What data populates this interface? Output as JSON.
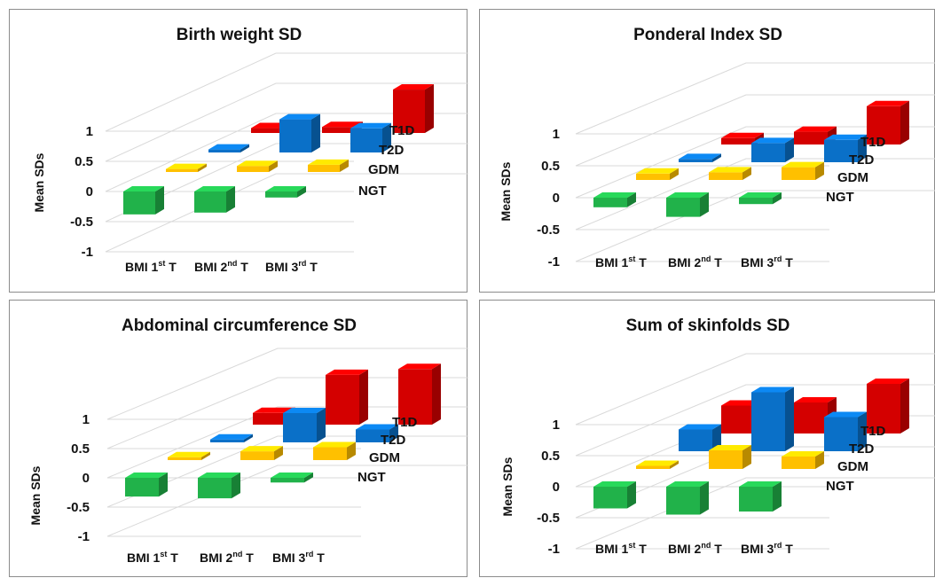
{
  "colors": {
    "NGT": "#21b24a",
    "GDM": "#ffc000",
    "T2D": "#0a70c8",
    "T1D": "#d40000"
  },
  "chart_data": [
    {
      "type": "bar",
      "title": "Birth weight SD",
      "ylabel": "Mean SDs",
      "ylim": [
        -1,
        1
      ],
      "yticks": [
        "1",
        "0.5",
        "0",
        "-0.5",
        "-1"
      ],
      "categories": [
        [
          "BMI 1",
          "st",
          " T"
        ],
        [
          "BMI 2",
          "nd",
          " T"
        ],
        [
          "BMI 3",
          "rd",
          " T"
        ]
      ],
      "series": [
        {
          "name": "NGT",
          "values": [
            -0.38,
            -0.35,
            -0.1
          ]
        },
        {
          "name": "GDM",
          "values": [
            0.05,
            0.1,
            0.12
          ]
        },
        {
          "name": "T2D",
          "values": [
            0.05,
            0.55,
            0.4
          ]
        },
        {
          "name": "T1D",
          "values": [
            0.08,
            0.1,
            0.72
          ]
        }
      ]
    },
    {
      "type": "bar",
      "title": "Ponderal Index SD",
      "ylabel": "Mean SDs",
      "ylim": [
        -1,
        1
      ],
      "yticks": [
        "1",
        "0.5",
        "0",
        "-0.5",
        "-1"
      ],
      "categories": [
        [
          "BMI 1",
          "st",
          " T"
        ],
        [
          "BMI 2",
          "nd",
          " T"
        ],
        [
          "BMI 3",
          "rd",
          " T"
        ]
      ],
      "series": [
        {
          "name": "NGT",
          "values": [
            -0.15,
            -0.3,
            -0.1
          ]
        },
        {
          "name": "GDM",
          "values": [
            0.1,
            0.12,
            0.2
          ]
        },
        {
          "name": "T2D",
          "values": [
            0.05,
            0.3,
            0.35
          ]
        },
        {
          "name": "T1D",
          "values": [
            0.1,
            0.2,
            0.6
          ]
        }
      ]
    },
    {
      "type": "bar",
      "title": "Abdominal circumference SD",
      "ylabel": "Mean SDs",
      "ylim": [
        -1,
        1
      ],
      "yticks": [
        "1",
        "0.5",
        "0",
        "-0.5",
        "-1"
      ],
      "categories": [
        [
          "BMI 1",
          "st",
          " T"
        ],
        [
          "BMI 2",
          "nd",
          " T"
        ],
        [
          "BMI 3",
          "rd",
          " T"
        ]
      ],
      "series": [
        {
          "name": "NGT",
          "values": [
            -0.32,
            -0.35,
            -0.08
          ]
        },
        {
          "name": "GDM",
          "values": [
            0.05,
            0.15,
            0.22
          ]
        },
        {
          "name": "T2D",
          "values": [
            0.05,
            0.5,
            0.22
          ]
        },
        {
          "name": "T1D",
          "values": [
            0.2,
            0.85,
            0.95
          ]
        }
      ]
    },
    {
      "type": "bar",
      "title": "Sum of skinfolds SD",
      "ylabel": "Mean SDs",
      "ylim": [
        -1,
        1
      ],
      "yticks": [
        "1",
        "0.5",
        "0",
        "-0.5",
        "-1"
      ],
      "categories": [
        [
          "BMI 1",
          "st",
          " T"
        ],
        [
          "BMI 2",
          "nd",
          " T"
        ],
        [
          "BMI 3",
          "rd",
          " T"
        ]
      ],
      "series": [
        {
          "name": "NGT",
          "values": [
            -0.35,
            -0.45,
            -0.4
          ]
        },
        {
          "name": "GDM",
          "values": [
            0.05,
            0.3,
            0.2
          ]
        },
        {
          "name": "T2D",
          "values": [
            0.35,
            0.95,
            0.55
          ]
        },
        {
          "name": "T1D",
          "values": [
            0.45,
            0.5,
            0.8
          ]
        }
      ]
    }
  ]
}
